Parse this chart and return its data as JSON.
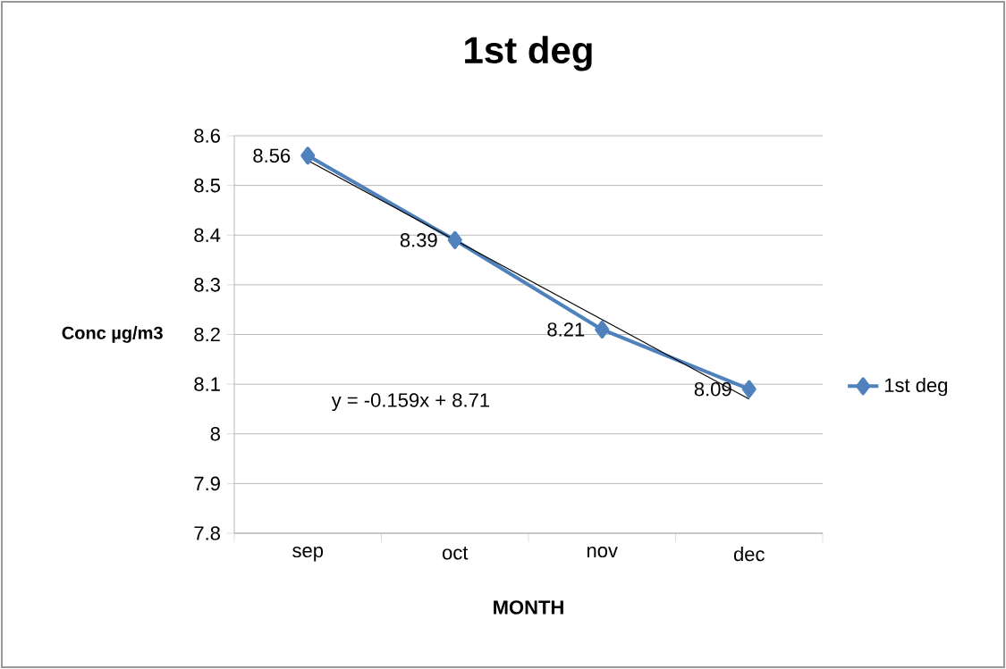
{
  "chart_data": {
    "type": "line",
    "title": "1st deg",
    "xlabel": "MONTH",
    "ylabel": "Conc µg/m3",
    "categories": [
      "sep",
      "oct",
      "nov",
      "dec"
    ],
    "series": [
      {
        "name": "1st deg",
        "color": "#4f81bd",
        "values": [
          8.56,
          8.39,
          8.21,
          8.09
        ],
        "value_labels": [
          "8.56",
          "8.39",
          "8.21",
          "8.09"
        ]
      },
      {
        "type": "line",
        "color": "#000000",
        "values": [
          8.55,
          8.39,
          8.23,
          8.07
        ],
        "marker": "none"
      }
    ],
    "annotations": [
      "y = -0.159x + 8.71"
    ],
    "ylim": [
      7.8,
      8.6
    ],
    "yticks": [
      7.8,
      7.9,
      8,
      8.1,
      8.2,
      8.3,
      8.4,
      8.5,
      8.6
    ],
    "grid": "y",
    "legend": "right",
    "marker": "diamond"
  }
}
